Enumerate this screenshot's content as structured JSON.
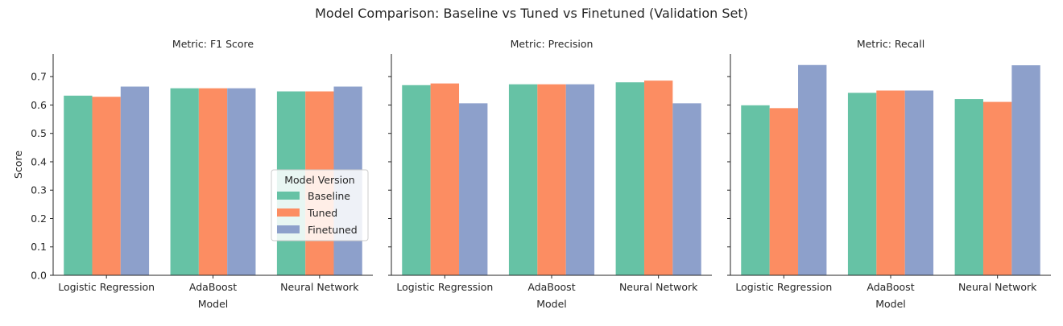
{
  "chart_data": {
    "type": "bar",
    "title": "Model Comparison: Baseline vs Tuned vs Finetuned (Validation Set)",
    "xlabel": "Model",
    "ylabel": "Score",
    "ylim": [
      0,
      0.78
    ],
    "yticks": [
      "0.0",
      "0.1",
      "0.2",
      "0.3",
      "0.4",
      "0.5",
      "0.6",
      "0.7"
    ],
    "categories": [
      "Logistic Regression",
      "AdaBoost",
      "Neural Network"
    ],
    "legend": {
      "title": "Model Version",
      "placement": "lower-right of first panel",
      "entries": [
        {
          "name": "Baseline",
          "color": "#66c2a5"
        },
        {
          "name": "Tuned",
          "color": "#fc8d62"
        },
        {
          "name": "Finetuned",
          "color": "#8da0cb"
        }
      ]
    },
    "panels": [
      {
        "title": "Metric: F1 Score",
        "series": [
          {
            "name": "Baseline",
            "values": [
              0.633,
              0.659,
              0.648
            ]
          },
          {
            "name": "Tuned",
            "values": [
              0.629,
              0.659,
              0.648
            ]
          },
          {
            "name": "Finetuned",
            "values": [
              0.665,
              0.659,
              0.665
            ]
          }
        ]
      },
      {
        "title": "Metric: Precision",
        "series": [
          {
            "name": "Baseline",
            "values": [
              0.67,
              0.673,
              0.68
            ]
          },
          {
            "name": "Tuned",
            "values": [
              0.676,
              0.673,
              0.686
            ]
          },
          {
            "name": "Finetuned",
            "values": [
              0.606,
              0.673,
              0.606
            ]
          }
        ]
      },
      {
        "title": "Metric: Recall",
        "series": [
          {
            "name": "Baseline",
            "values": [
              0.599,
              0.643,
              0.621
            ]
          },
          {
            "name": "Tuned",
            "values": [
              0.589,
              0.651,
              0.611
            ]
          },
          {
            "name": "Finetuned",
            "values": [
              0.741,
              0.651,
              0.74
            ]
          }
        ]
      }
    ]
  }
}
